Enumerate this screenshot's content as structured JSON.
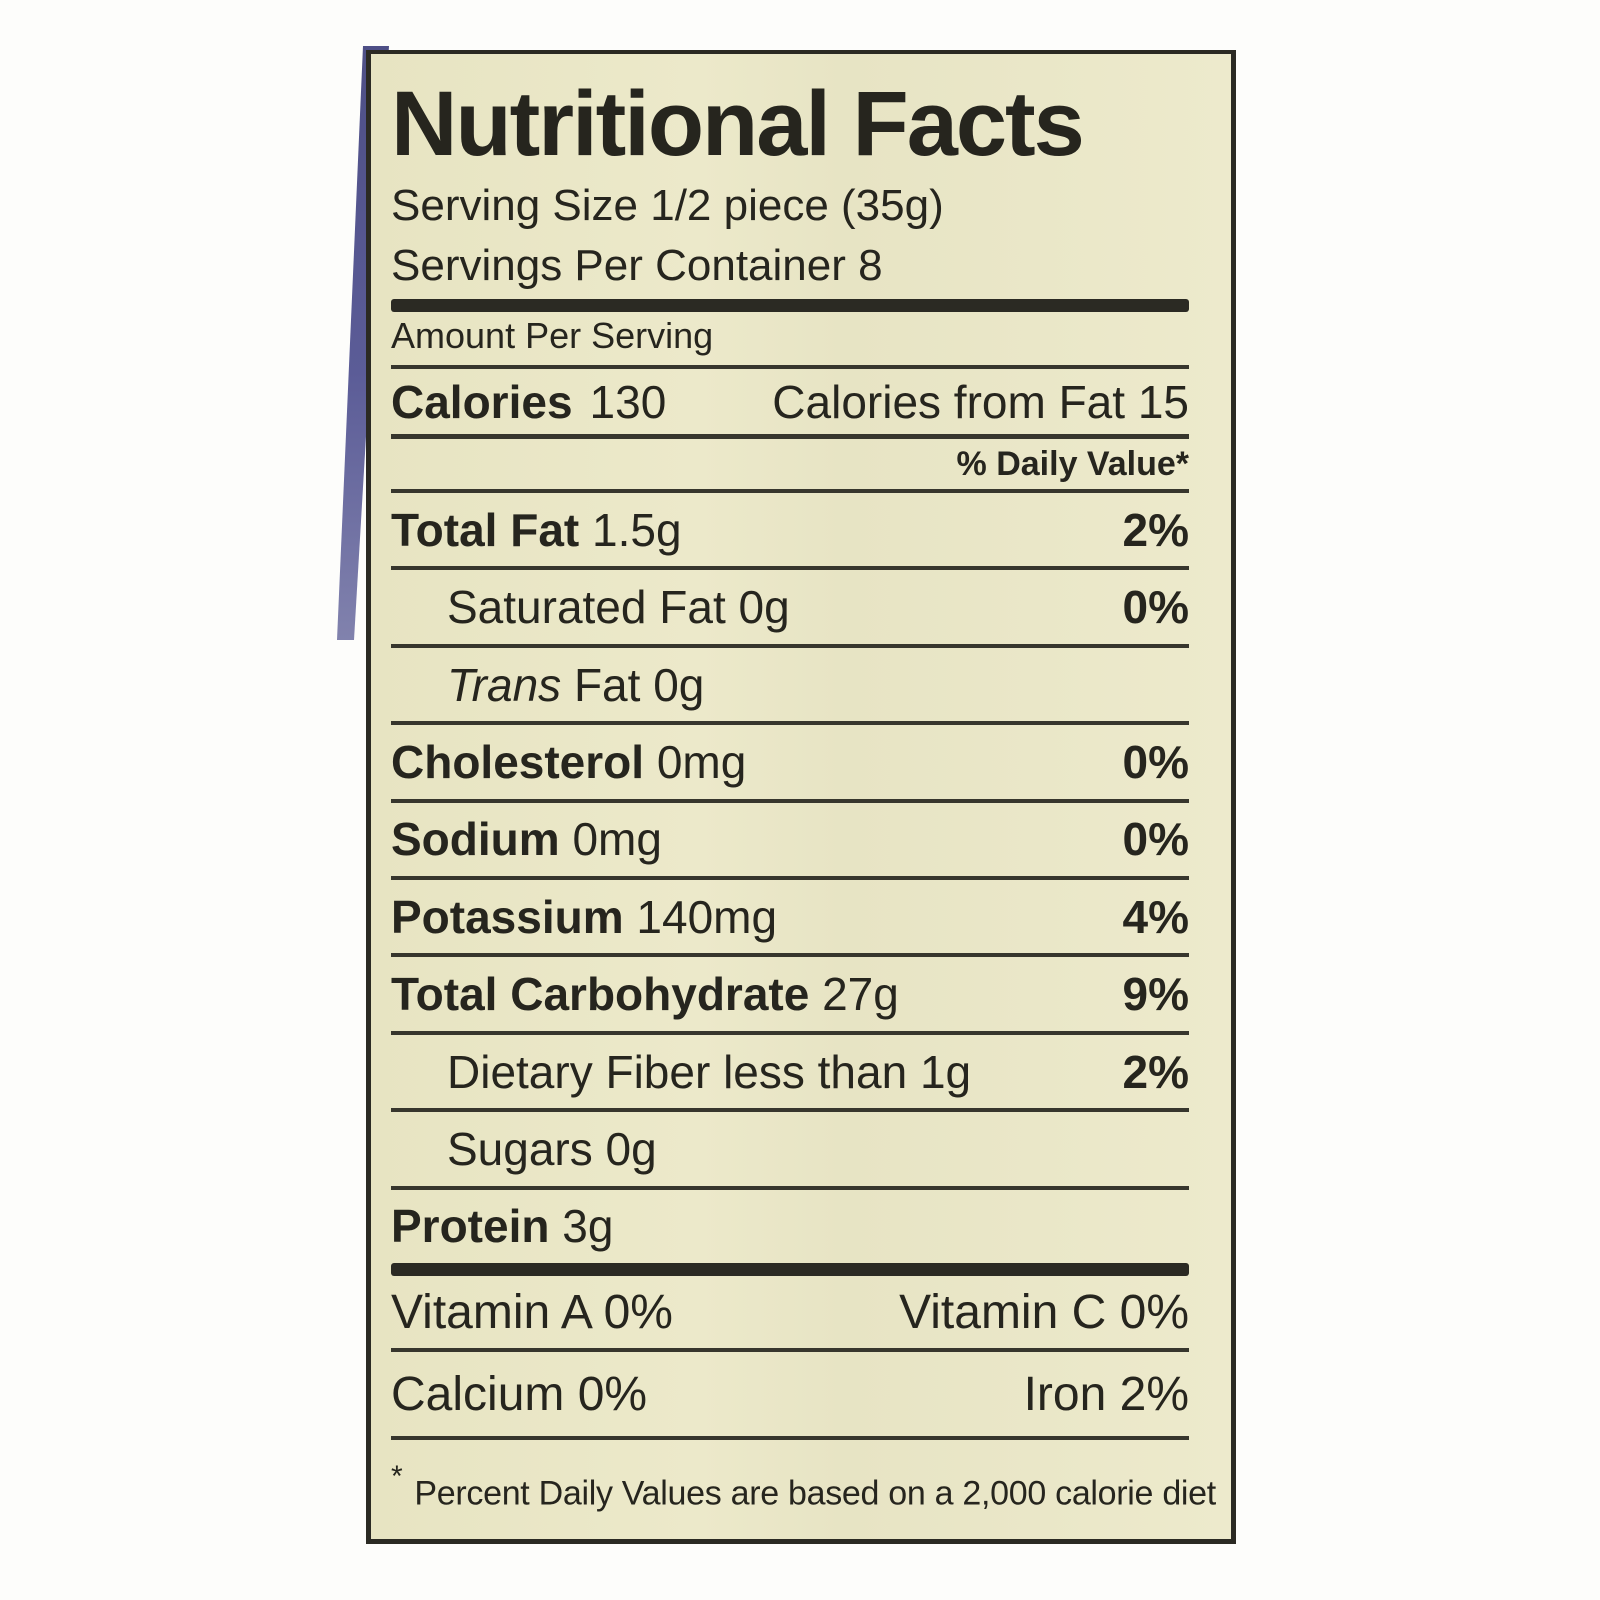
{
  "label": {
    "colors": {
      "label_background": "#e9e6c6",
      "ink": "#2b2a23",
      "package_edge_purple": "#5b5c97",
      "photo_background": "#fdfdfb"
    },
    "title": "Nutritional Facts",
    "serving_size_line": "Serving Size 1/2 piece (35g)",
    "servings_per_container_line": "Servings Per Container 8",
    "amount_per_serving": "Amount Per Serving",
    "calories": {
      "label": "Calories",
      "value": "130",
      "from_fat": "Calories from Fat 15"
    },
    "daily_value_header": "% Daily Value*",
    "nutrients": [
      {
        "bold": "Total Fat",
        "rest": " 1.5g",
        "dv": "2%"
      },
      {
        "bold": "",
        "rest": "Saturated Fat 0g",
        "dv": "0%"
      },
      {
        "italic": "Trans",
        "rest": " Fat 0g",
        "dv": ""
      },
      {
        "bold": "Cholesterol",
        "rest": " 0mg",
        "dv": "0%"
      },
      {
        "bold": "Sodium",
        "rest": " 0mg",
        "dv": "0%"
      },
      {
        "bold": "Potassium",
        "rest": " 140mg",
        "dv": "4%"
      },
      {
        "bold": "Total Carbohydrate",
        "rest": " 27g",
        "dv": "9%"
      },
      {
        "bold": "",
        "rest": "Dietary Fiber less than 1g",
        "dv": "2%"
      },
      {
        "bold": "",
        "rest": "Sugars 0g",
        "dv": ""
      },
      {
        "bold": "Protein",
        "rest": " 3g",
        "dv": ""
      }
    ],
    "micronutrients": [
      {
        "left": "Vitamin A 0%",
        "right": "Vitamin C 0%"
      },
      {
        "left": "Calcium 0%",
        "right": "Iron 2%"
      }
    ],
    "footnote_mark": "*",
    "footnote_text": "Percent Daily Values are based on a 2,000 calorie diet"
  }
}
